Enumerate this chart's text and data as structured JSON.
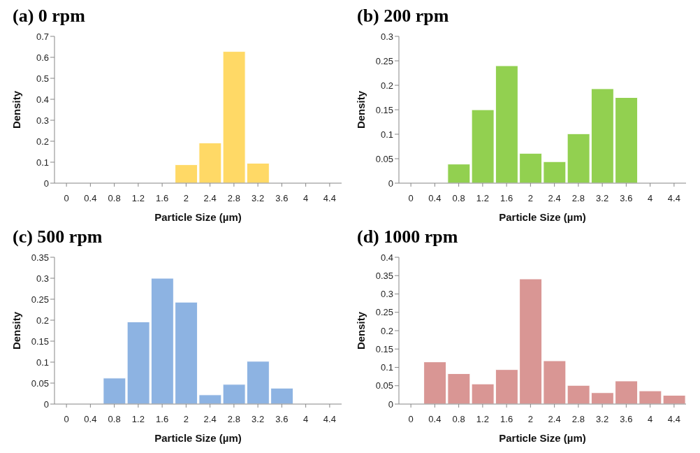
{
  "chart_data": [
    {
      "type": "bar",
      "title": "(a) 0 rpm",
      "xlabel": "Particle Size (µm)",
      "ylabel": "Density",
      "categories": [
        "0",
        "0.4",
        "0.8",
        "1.2",
        "1.6",
        "2",
        "2.4",
        "2.8",
        "3.2",
        "3.6",
        "4",
        "4.4"
      ],
      "values": [
        0,
        0,
        0,
        0,
        0,
        0.088,
        0.192,
        0.628,
        0.095,
        0,
        0,
        0
      ],
      "color": "#ffd966",
      "ylim": [
        0,
        0.7
      ],
      "yticks": [
        0,
        0.1,
        0.2,
        0.3,
        0.4,
        0.5,
        0.6,
        0.7
      ],
      "grid": false,
      "legend": false
    },
    {
      "type": "bar",
      "title": "(b) 200 rpm",
      "xlabel": "Particle Size (µm)",
      "ylabel": "Density",
      "categories": [
        "0",
        "0.4",
        "0.8",
        "1.2",
        "1.6",
        "2",
        "2.4",
        "2.8",
        "3.2",
        "3.6",
        "4",
        "4.4"
      ],
      "values": [
        0,
        0,
        0.039,
        0.15,
        0.24,
        0.061,
        0.044,
        0.101,
        0.193,
        0.175,
        0,
        0
      ],
      "color": "#92d050",
      "ylim": [
        0,
        0.3
      ],
      "yticks": [
        0,
        0.05,
        0.1,
        0.15,
        0.2,
        0.25,
        0.3
      ],
      "grid": false,
      "legend": false
    },
    {
      "type": "bar",
      "title": "(c) 500 rpm",
      "xlabel": "Particle Size (µm)",
      "ylabel": "Density",
      "categories": [
        "0",
        "0.4",
        "0.8",
        "1.2",
        "1.6",
        "2",
        "2.4",
        "2.8",
        "3.2",
        "3.6",
        "4",
        "4.4"
      ],
      "values": [
        0,
        0,
        0.062,
        0.196,
        0.3,
        0.243,
        0.022,
        0.047,
        0.102,
        0.038,
        0,
        0
      ],
      "color": "#8db3e2",
      "ylim": [
        0,
        0.35
      ],
      "yticks": [
        0,
        0.05,
        0.1,
        0.15,
        0.2,
        0.25,
        0.3,
        0.35
      ],
      "grid": false,
      "legend": false
    },
    {
      "type": "bar",
      "title": "(d) 1000 rpm",
      "xlabel": "Particle Size (µm)",
      "ylabel": "Density",
      "categories": [
        "0",
        "0.4",
        "0.8",
        "1.2",
        "1.6",
        "2",
        "2.4",
        "2.8",
        "3.2",
        "3.6",
        "4",
        "4.4"
      ],
      "values": [
        0,
        0.115,
        0.083,
        0.055,
        0.094,
        0.341,
        0.118,
        0.051,
        0.031,
        0.063,
        0.036,
        0.024
      ],
      "color": "#d99694",
      "ylim": [
        0,
        0.4
      ],
      "yticks": [
        0,
        0.05,
        0.1,
        0.15,
        0.2,
        0.25,
        0.3,
        0.35,
        0.4
      ],
      "grid": false,
      "legend": false
    }
  ]
}
